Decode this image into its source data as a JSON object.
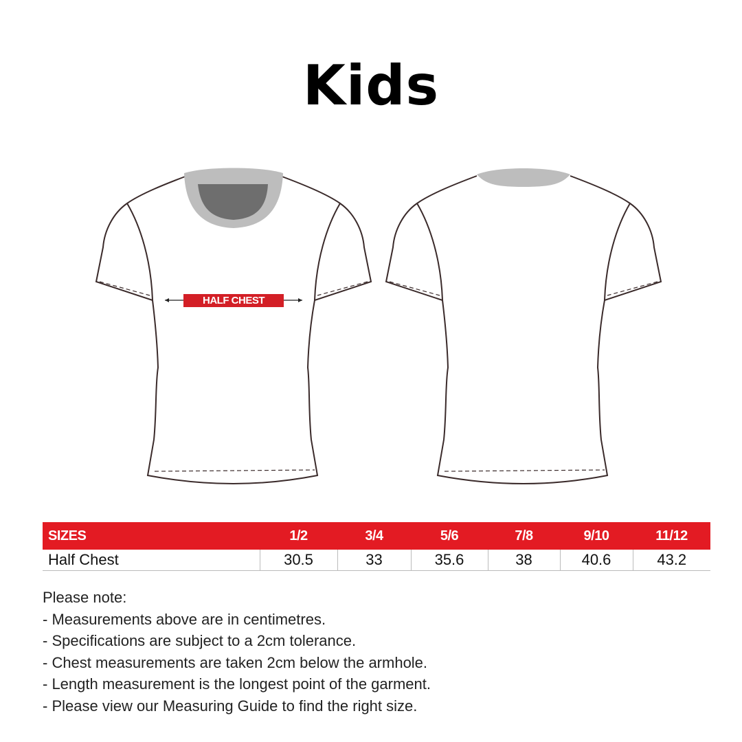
{
  "title": "Kids",
  "diagram": {
    "measurement_label": "HALF CHEST",
    "accent_color": "#e31b23"
  },
  "table": {
    "header": [
      "SIZES",
      "1/2",
      "3/4",
      "5/6",
      "7/8",
      "9/10",
      "11/12"
    ],
    "rows": [
      {
        "label": "Half Chest",
        "values": [
          "30.5",
          "33",
          "35.6",
          "38",
          "40.6",
          "43.2"
        ]
      }
    ]
  },
  "notes": {
    "heading": "Please note:",
    "items": [
      "- Measurements above are in centimetres.",
      "- Specifications are subject to a 2cm tolerance.",
      "- Chest measurements are taken 2cm below the armhole.",
      "- Length measurement is the longest point of the garment.",
      "- Please view our Measuring Guide to find the right size."
    ]
  }
}
